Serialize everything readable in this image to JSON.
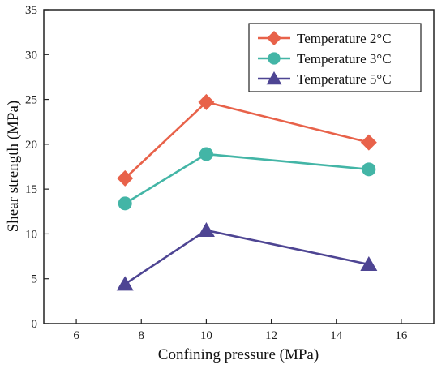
{
  "chart_data": {
    "type": "line",
    "xlabel": "Confining pressure (MPa)",
    "ylabel": "Shear strength (MPa)",
    "xlim": [
      5,
      17
    ],
    "ylim": [
      0,
      35
    ],
    "xticks": [
      6,
      8,
      10,
      12,
      14,
      16
    ],
    "yticks": [
      0,
      5,
      10,
      15,
      20,
      25,
      30,
      35
    ],
    "grid": false,
    "legend_position": "top-right",
    "series": [
      {
        "name": "Temperature 2°C",
        "marker": "diamond",
        "color": "#e8624a",
        "x": [
          7.5,
          10,
          15
        ],
        "y": [
          16.2,
          24.7,
          20.2
        ]
      },
      {
        "name": "Temperature 3°C",
        "marker": "circle",
        "color": "#43b5a6",
        "x": [
          7.5,
          10,
          15
        ],
        "y": [
          13.4,
          18.9,
          17.2
        ]
      },
      {
        "name": "Temperature 5°C",
        "marker": "triangle",
        "color": "#4e4593",
        "x": [
          7.5,
          10,
          15
        ],
        "y": [
          4.4,
          10.4,
          6.6
        ]
      }
    ]
  }
}
